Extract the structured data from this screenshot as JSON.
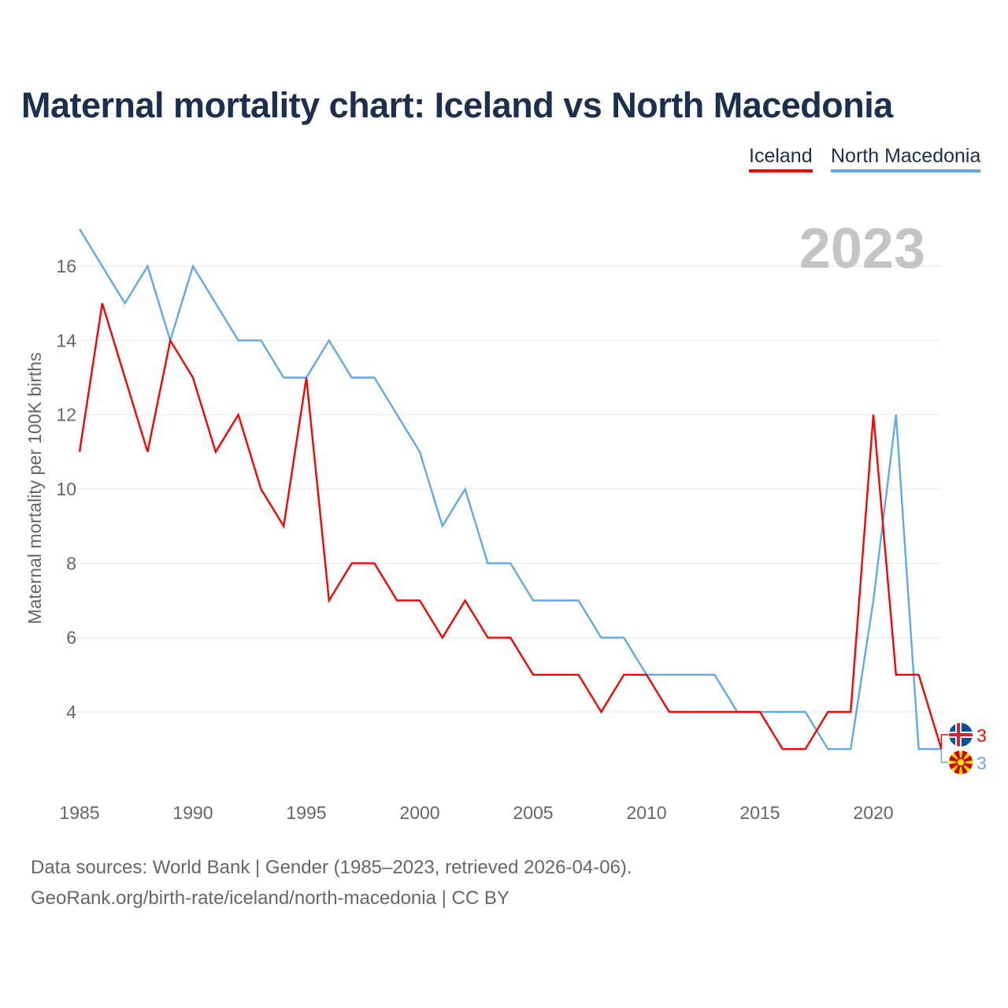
{
  "title": "Maternal mortality chart: Iceland vs North Macedonia",
  "colors": {
    "iceland": "#ff0000",
    "north_macedonia": "#62a8e8",
    "title": "#1b3050",
    "year": "#c4c4c4"
  },
  "chart_data": {
    "type": "line",
    "title": "Maternal mortality chart: Iceland vs North Macedonia",
    "ylabel": "Maternal mortality per 100K births",
    "xlabel": "",
    "year_label": "2023",
    "x": [
      1985,
      1986,
      1987,
      1988,
      1989,
      1990,
      1991,
      1992,
      1993,
      1994,
      1995,
      1996,
      1997,
      1998,
      1999,
      2000,
      2001,
      2002,
      2003,
      2004,
      2005,
      2006,
      2007,
      2008,
      2009,
      2010,
      2011,
      2012,
      2013,
      2014,
      2015,
      2016,
      2017,
      2018,
      2019,
      2020,
      2021,
      2022,
      2023
    ],
    "xlim": [
      1985,
      2023
    ],
    "ylim": [
      2,
      17
    ],
    "xticks": [
      1985,
      1990,
      1995,
      2000,
      2005,
      2010,
      2015,
      2020
    ],
    "yticks": [
      4,
      6,
      8,
      10,
      12,
      14,
      16
    ],
    "grid": true,
    "legend_position": "top-right",
    "series": [
      {
        "name": "Iceland",
        "color": "#ff0000",
        "end_label": "3",
        "values": [
          11,
          15,
          13,
          11,
          14,
          13,
          11,
          12,
          10,
          9,
          13,
          7,
          8,
          8,
          7,
          7,
          6,
          7,
          6,
          6,
          5,
          5,
          5,
          4,
          5,
          5,
          4,
          4,
          4,
          4,
          4,
          3,
          3,
          4,
          4,
          12,
          5,
          5,
          3
        ]
      },
      {
        "name": "North Macedonia",
        "color": "#62a8e8",
        "end_label": "3",
        "values": [
          17,
          16,
          15,
          16,
          14,
          16,
          15,
          14,
          14,
          13,
          13,
          14,
          13,
          13,
          12,
          11,
          9,
          10,
          8,
          8,
          7,
          7,
          7,
          6,
          6,
          5,
          5,
          5,
          5,
          4,
          4,
          4,
          4,
          3,
          3,
          7,
          12,
          3,
          3
        ]
      }
    ]
  },
  "footer": {
    "line1": "Data sources: World Bank | Gender (1985–2023, retrieved 2026-04-06).",
    "line2": "GeoRank.org/birth-rate/iceland/north-macedonia | CC BY"
  }
}
